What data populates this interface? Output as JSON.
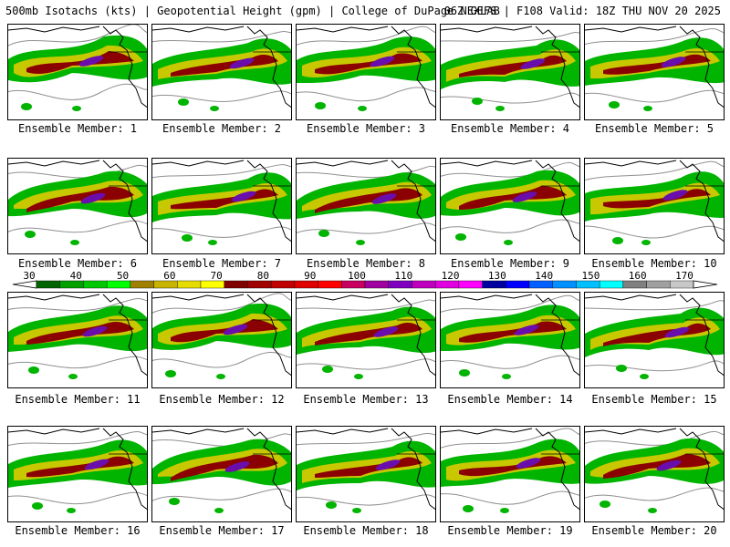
{
  "header": {
    "left": "500mb Isotachs (kts) | Geopotential Height (gpm) | College of DuPage NEXLAB",
    "right": "06Z GEFS | F108 Valid: 18Z THU NOV 20 2025"
  },
  "members": [
    "Ensemble Member: 1",
    "Ensemble Member: 2",
    "Ensemble Member: 3",
    "Ensemble Member: 4",
    "Ensemble Member: 5",
    "Ensemble Member: 6",
    "Ensemble Member: 7",
    "Ensemble Member: 8",
    "Ensemble Member: 9",
    "Ensemble Member: 10",
    "Ensemble Member: 11",
    "Ensemble Member: 12",
    "Ensemble Member: 13",
    "Ensemble Member: 14",
    "Ensemble Member: 15",
    "Ensemble Member: 16",
    "Ensemble Member: 17",
    "Ensemble Member: 18",
    "Ensemble Member: 19",
    "Ensemble Member: 20"
  ],
  "colorbar": {
    "labels": [
      "30",
      "40",
      "50",
      "60",
      "70",
      "80",
      "90",
      "100",
      "110",
      "120",
      "130",
      "140",
      "150",
      "160",
      "170"
    ],
    "colors": [
      "#006400",
      "#00a000",
      "#00c800",
      "#00ff00",
      "#a08000",
      "#c8b400",
      "#e6dc00",
      "#ffff00",
      "#800000",
      "#a00000",
      "#c00000",
      "#e00000",
      "#ff0000",
      "#c80060",
      "#a000a0",
      "#8000c0",
      "#c000c0",
      "#e000e0",
      "#ff00ff",
      "#0000a0",
      "#0000ff",
      "#0060ff",
      "#0090ff",
      "#00c0ff",
      "#00ffff",
      "#808080",
      "#a0a0a0",
      "#c8c8c8"
    ]
  },
  "jet_colors": {
    "outer": "#00b400",
    "mid": "#c8c800",
    "core": "#8b0000",
    "peak": "#6a0dad",
    "height_contour": "#909090",
    "coast": "#000000"
  }
}
